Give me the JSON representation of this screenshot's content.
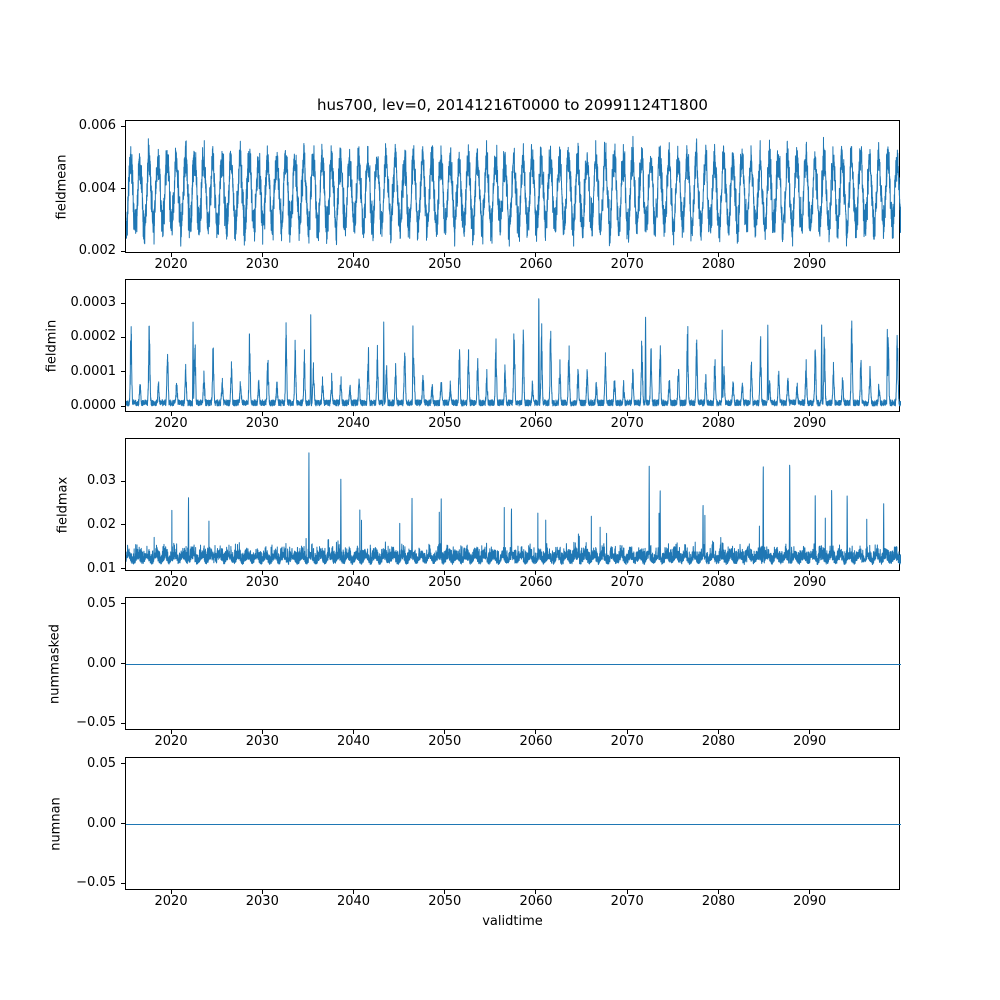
{
  "chart_data": {
    "type": "line",
    "title": "hus700, lev=0, 20141216T0000 to 20991124T1800",
    "xlabel": "validtime",
    "x_range": [
      2014.95,
      2099.9
    ],
    "xticks": [
      2020,
      2030,
      2040,
      2050,
      2060,
      2070,
      2080,
      2090
    ],
    "xtick_labels": [
      "2020",
      "2030",
      "2040",
      "2050",
      "2060",
      "2070",
      "2080",
      "2090"
    ],
    "line_color": "#1f77b4",
    "grid": false,
    "legend": "none",
    "subplots": [
      {
        "ylabel": "fieldmean",
        "yticks": [
          0.002,
          0.004,
          0.006
        ],
        "ytick_labels": [
          "0.002",
          "0.004",
          "0.006"
        ],
        "ylim": [
          0.00195,
          0.0062
        ],
        "signal": {
          "kind": "seasonal_band",
          "description": "dense annual oscillation with high-frequency noise",
          "mean": 0.0039,
          "seasonal_amplitude": 0.00105,
          "noise_amplitude": 0.00045,
          "min": 0.0022,
          "max": 0.00605,
          "period_years": 1,
          "seed": 11
        },
        "notable_peaks": [
          [
            2091.4,
            0.006
          ]
        ]
      },
      {
        "ylabel": "fieldmin",
        "yticks": [
          0.0,
          0.0001,
          0.0002,
          0.0003
        ],
        "ytick_labels": [
          "0.0000",
          "0.0001",
          "0.0002",
          "0.0003"
        ],
        "ylim": [
          -1.65e-05,
          0.00037
        ],
        "signal": {
          "kind": "spiky_min",
          "description": "baseline near zero with sharp annual spikes of varying height",
          "base": 4e-06,
          "peak_min": 6e-05,
          "peak_max": 0.00026,
          "period_years": 1,
          "seed": 22
        },
        "notable_peaks": [
          [
            2022.3,
            0.00025
          ],
          [
            2035.2,
            0.00027
          ],
          [
            2043.2,
            0.00025
          ],
          [
            2046.4,
            0.00024
          ],
          [
            2060.2,
            0.00035
          ],
          [
            2071.9,
            0.00028
          ],
          [
            2080.3,
            0.00023
          ],
          [
            2085.3,
            0.00024
          ],
          [
            2091.2,
            0.00026
          ],
          [
            2098.4,
            0.00023
          ]
        ]
      },
      {
        "ylabel": "fieldmax",
        "yticks": [
          0.01,
          0.02,
          0.03
        ],
        "ytick_labels": [
          "0.01",
          "0.02",
          "0.03"
        ],
        "ylim": [
          0.0095,
          0.0398
        ],
        "signal": {
          "kind": "noisy_max",
          "description": "noisy band 0.011-0.022 with frequent excursions and tall sporadic spikes",
          "base": 0.0118,
          "noise_amplitude": 0.004,
          "floor": 0.0112,
          "cap": 0.0295,
          "seed": 33
        },
        "notable_peaks": [
          [
            2021.8,
            0.028
          ],
          [
            2035.0,
            0.0375
          ],
          [
            2038.5,
            0.031
          ],
          [
            2046.3,
            0.027
          ],
          [
            2049.5,
            0.027
          ],
          [
            2057.2,
            0.026
          ],
          [
            2072.3,
            0.034
          ],
          [
            2073.5,
            0.03
          ],
          [
            2078.2,
            0.027
          ],
          [
            2084.8,
            0.036
          ],
          [
            2087.7,
            0.0375
          ],
          [
            2090.5,
            0.028
          ],
          [
            2092.3,
            0.03
          ],
          [
            2094.0,
            0.029
          ],
          [
            2098.0,
            0.026
          ]
        ]
      },
      {
        "ylabel": "nummasked",
        "yticks": [
          0.05,
          0.0,
          -0.05
        ],
        "ytick_labels": [
          "0.05",
          "0.00",
          "−0.05"
        ],
        "ylim": [
          -0.0555,
          0.0555
        ],
        "signal": {
          "kind": "constant",
          "description": "flat line",
          "value": 0
        },
        "notable_peaks": []
      },
      {
        "ylabel": "numnan",
        "yticks": [
          0.05,
          0.0,
          -0.05
        ],
        "ytick_labels": [
          "0.05",
          "0.00",
          "−0.05"
        ],
        "ylim": [
          -0.0555,
          0.0555
        ],
        "signal": {
          "kind": "constant",
          "description": "flat line",
          "value": 0
        },
        "notable_peaks": []
      }
    ]
  }
}
